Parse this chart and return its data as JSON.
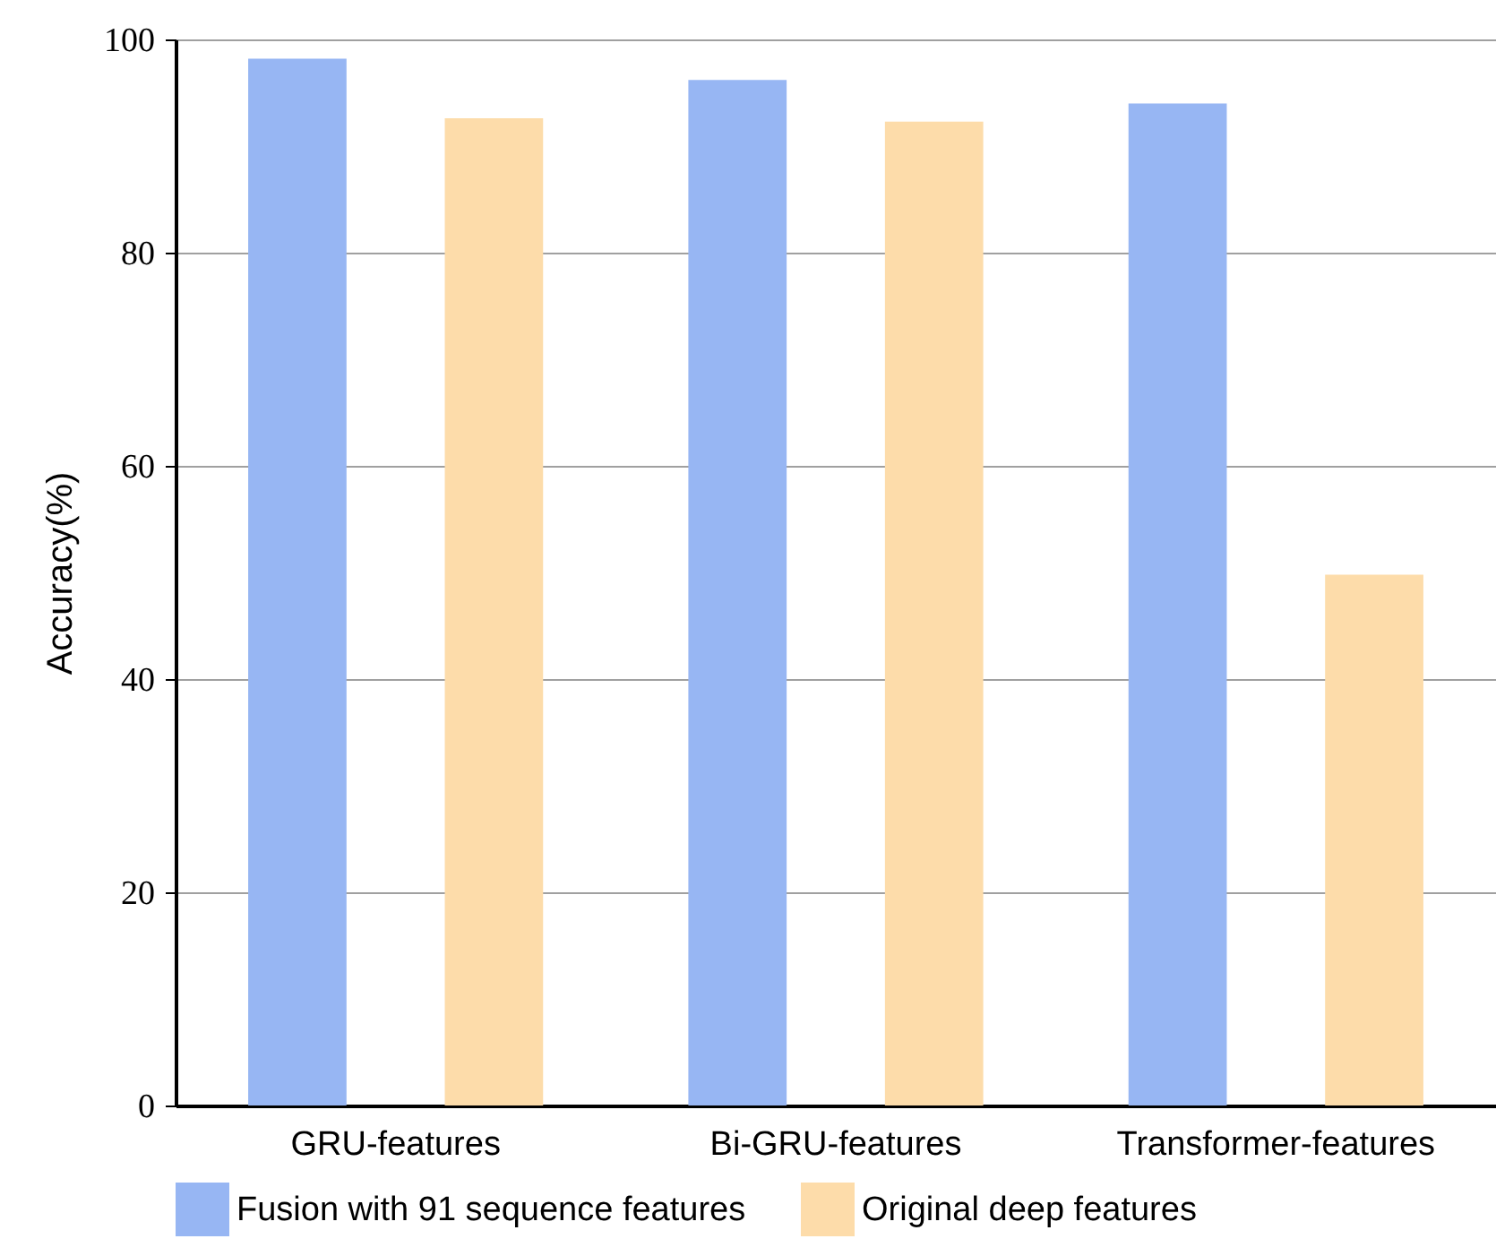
{
  "chart_data": {
    "type": "bar",
    "ylabel": "Accuracy(%)",
    "categories": [
      "GRU-features",
      "Bi-GRU-features",
      "Transformer-features"
    ],
    "series": [
      {
        "name": "Fusion with 91 sequence features",
        "color": "#97b6f3",
        "values": [
          98.2,
          96.2,
          94.0
        ]
      },
      {
        "name": "Original deep features",
        "color": "#fddcaa",
        "values": [
          92.6,
          92.3,
          49.8
        ]
      }
    ],
    "ylim": [
      0,
      100
    ],
    "yticks": [
      0,
      20,
      40,
      60,
      80,
      100
    ],
    "grid": "y",
    "legend": "bottom"
  }
}
